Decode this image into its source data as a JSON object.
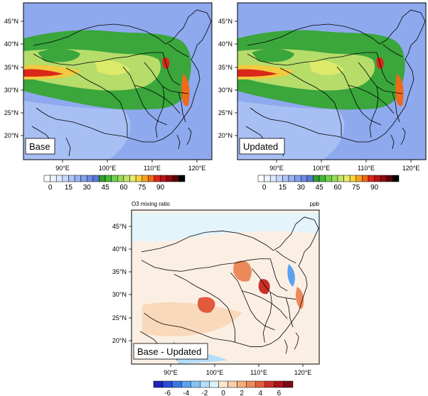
{
  "panels": [
    {
      "label": "Base"
    },
    {
      "label": "Updated"
    },
    {
      "label": "Base - Updated",
      "header_left": "O3 mixing ratio",
      "header_right": "ppb"
    }
  ],
  "lat_labels": [
    "45°N",
    "40°N",
    "35°N",
    "30°N",
    "25°N",
    "20°N"
  ],
  "lon_labels": [
    "90°E",
    "100°E",
    "110°E",
    "120°E"
  ],
  "colorbar_abs": {
    "labels": [
      "0",
      "15",
      "30",
      "45",
      "60",
      "75",
      "90"
    ],
    "colors": [
      "#ffffff",
      "#eef5ff",
      "#dde9ff",
      "#c6d8fb",
      "#afc6f5",
      "#98b3ef",
      "#819fe8",
      "#6d8be0",
      "#5a78d8",
      "#2f9e2f",
      "#46b83a",
      "#6fce4a",
      "#9ada5a",
      "#c4e46a",
      "#e6ec6c",
      "#f8d43a",
      "#f5a020",
      "#ec6a1a",
      "#d9281a",
      "#b81418",
      "#8e0c12",
      "#5a0608",
      "#000000"
    ]
  },
  "colorbar_diff": {
    "labels": [
      "-6",
      "-4",
      "-2",
      "0",
      "2",
      "4",
      "6"
    ],
    "colors": [
      "#1e22b8",
      "#2a4ed8",
      "#3a78e6",
      "#5aa2f0",
      "#85c2f5",
      "#b4def9",
      "#ddf0fc",
      "#fde7d2",
      "#f9cda6",
      "#f4ae7c",
      "#ec8a5a",
      "#e05a3c",
      "#cc2e28",
      "#a8141a",
      "#7a0b12"
    ]
  },
  "colors": {
    "base_background": "#8fa9ee",
    "diff_background": "#fbefe4",
    "plateau": "#3aa63c",
    "border_lines": "#000000"
  }
}
